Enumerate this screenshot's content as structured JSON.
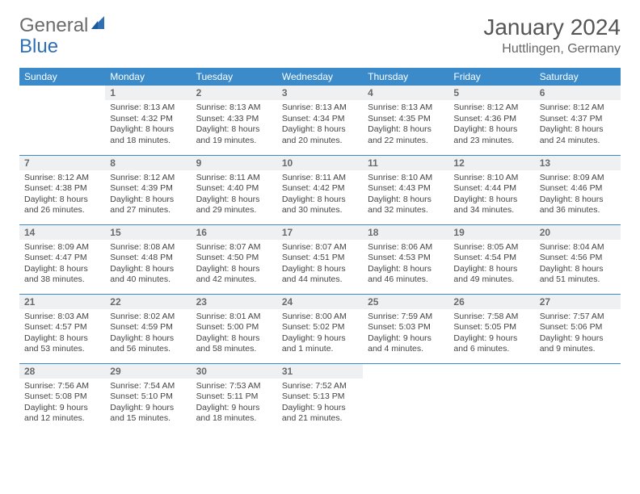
{
  "brand": {
    "part1": "General",
    "part2": "Blue"
  },
  "title": "January 2024",
  "location": "Huttlingen, Germany",
  "colors": {
    "header_bg": "#3b8bca",
    "header_text": "#ffffff",
    "daynum_bg": "#eef0f2",
    "daynum_text": "#6a6a6a",
    "border": "#3b8bca",
    "brand_gray": "#6b6b6b",
    "brand_blue": "#2f6fb3"
  },
  "weekdays": [
    "Sunday",
    "Monday",
    "Tuesday",
    "Wednesday",
    "Thursday",
    "Friday",
    "Saturday"
  ],
  "first_weekday_index": 1,
  "days": [
    {
      "n": 1,
      "sunrise": "8:13 AM",
      "sunset": "4:32 PM",
      "daylight": "8 hours and 18 minutes."
    },
    {
      "n": 2,
      "sunrise": "8:13 AM",
      "sunset": "4:33 PM",
      "daylight": "8 hours and 19 minutes."
    },
    {
      "n": 3,
      "sunrise": "8:13 AM",
      "sunset": "4:34 PM",
      "daylight": "8 hours and 20 minutes."
    },
    {
      "n": 4,
      "sunrise": "8:13 AM",
      "sunset": "4:35 PM",
      "daylight": "8 hours and 22 minutes."
    },
    {
      "n": 5,
      "sunrise": "8:12 AM",
      "sunset": "4:36 PM",
      "daylight": "8 hours and 23 minutes."
    },
    {
      "n": 6,
      "sunrise": "8:12 AM",
      "sunset": "4:37 PM",
      "daylight": "8 hours and 24 minutes."
    },
    {
      "n": 7,
      "sunrise": "8:12 AM",
      "sunset": "4:38 PM",
      "daylight": "8 hours and 26 minutes."
    },
    {
      "n": 8,
      "sunrise": "8:12 AM",
      "sunset": "4:39 PM",
      "daylight": "8 hours and 27 minutes."
    },
    {
      "n": 9,
      "sunrise": "8:11 AM",
      "sunset": "4:40 PM",
      "daylight": "8 hours and 29 minutes."
    },
    {
      "n": 10,
      "sunrise": "8:11 AM",
      "sunset": "4:42 PM",
      "daylight": "8 hours and 30 minutes."
    },
    {
      "n": 11,
      "sunrise": "8:10 AM",
      "sunset": "4:43 PM",
      "daylight": "8 hours and 32 minutes."
    },
    {
      "n": 12,
      "sunrise": "8:10 AM",
      "sunset": "4:44 PM",
      "daylight": "8 hours and 34 minutes."
    },
    {
      "n": 13,
      "sunrise": "8:09 AM",
      "sunset": "4:46 PM",
      "daylight": "8 hours and 36 minutes."
    },
    {
      "n": 14,
      "sunrise": "8:09 AM",
      "sunset": "4:47 PM",
      "daylight": "8 hours and 38 minutes."
    },
    {
      "n": 15,
      "sunrise": "8:08 AM",
      "sunset": "4:48 PM",
      "daylight": "8 hours and 40 minutes."
    },
    {
      "n": 16,
      "sunrise": "8:07 AM",
      "sunset": "4:50 PM",
      "daylight": "8 hours and 42 minutes."
    },
    {
      "n": 17,
      "sunrise": "8:07 AM",
      "sunset": "4:51 PM",
      "daylight": "8 hours and 44 minutes."
    },
    {
      "n": 18,
      "sunrise": "8:06 AM",
      "sunset": "4:53 PM",
      "daylight": "8 hours and 46 minutes."
    },
    {
      "n": 19,
      "sunrise": "8:05 AM",
      "sunset": "4:54 PM",
      "daylight": "8 hours and 49 minutes."
    },
    {
      "n": 20,
      "sunrise": "8:04 AM",
      "sunset": "4:56 PM",
      "daylight": "8 hours and 51 minutes."
    },
    {
      "n": 21,
      "sunrise": "8:03 AM",
      "sunset": "4:57 PM",
      "daylight": "8 hours and 53 minutes."
    },
    {
      "n": 22,
      "sunrise": "8:02 AM",
      "sunset": "4:59 PM",
      "daylight": "8 hours and 56 minutes."
    },
    {
      "n": 23,
      "sunrise": "8:01 AM",
      "sunset": "5:00 PM",
      "daylight": "8 hours and 58 minutes."
    },
    {
      "n": 24,
      "sunrise": "8:00 AM",
      "sunset": "5:02 PM",
      "daylight": "9 hours and 1 minute."
    },
    {
      "n": 25,
      "sunrise": "7:59 AM",
      "sunset": "5:03 PM",
      "daylight": "9 hours and 4 minutes."
    },
    {
      "n": 26,
      "sunrise": "7:58 AM",
      "sunset": "5:05 PM",
      "daylight": "9 hours and 6 minutes."
    },
    {
      "n": 27,
      "sunrise": "7:57 AM",
      "sunset": "5:06 PM",
      "daylight": "9 hours and 9 minutes."
    },
    {
      "n": 28,
      "sunrise": "7:56 AM",
      "sunset": "5:08 PM",
      "daylight": "9 hours and 12 minutes."
    },
    {
      "n": 29,
      "sunrise": "7:54 AM",
      "sunset": "5:10 PM",
      "daylight": "9 hours and 15 minutes."
    },
    {
      "n": 30,
      "sunrise": "7:53 AM",
      "sunset": "5:11 PM",
      "daylight": "9 hours and 18 minutes."
    },
    {
      "n": 31,
      "sunrise": "7:52 AM",
      "sunset": "5:13 PM",
      "daylight": "9 hours and 21 minutes."
    }
  ],
  "labels": {
    "sunrise_prefix": "Sunrise: ",
    "sunset_prefix": "Sunset: ",
    "daylight_prefix": "Daylight: "
  }
}
